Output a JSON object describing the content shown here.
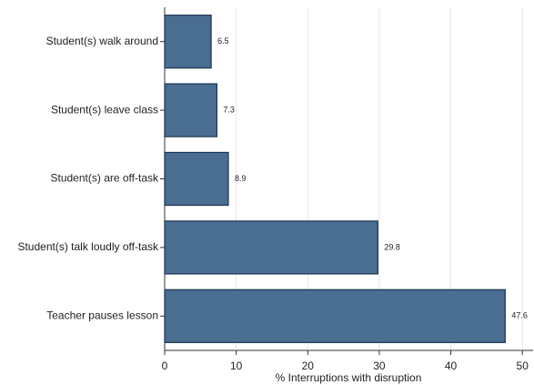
{
  "chart_data": {
    "type": "bar",
    "orientation": "horizontal",
    "categories": [
      "Student(s) walk around",
      "Student(s) leave class",
      "Student(s) are off-task",
      "Student(s) talk loudly off-task",
      "Teacher pauses lesson"
    ],
    "values": [
      6.5,
      7.3,
      8.9,
      29.8,
      47.6
    ],
    "color": "#4a6d92",
    "edge_color": "#1c3550",
    "xlabel": "% Interruptions with disruption",
    "xlim": [
      0,
      51.5
    ],
    "xticks": [
      0,
      10,
      20,
      30,
      40,
      50
    ],
    "grid": true
  }
}
